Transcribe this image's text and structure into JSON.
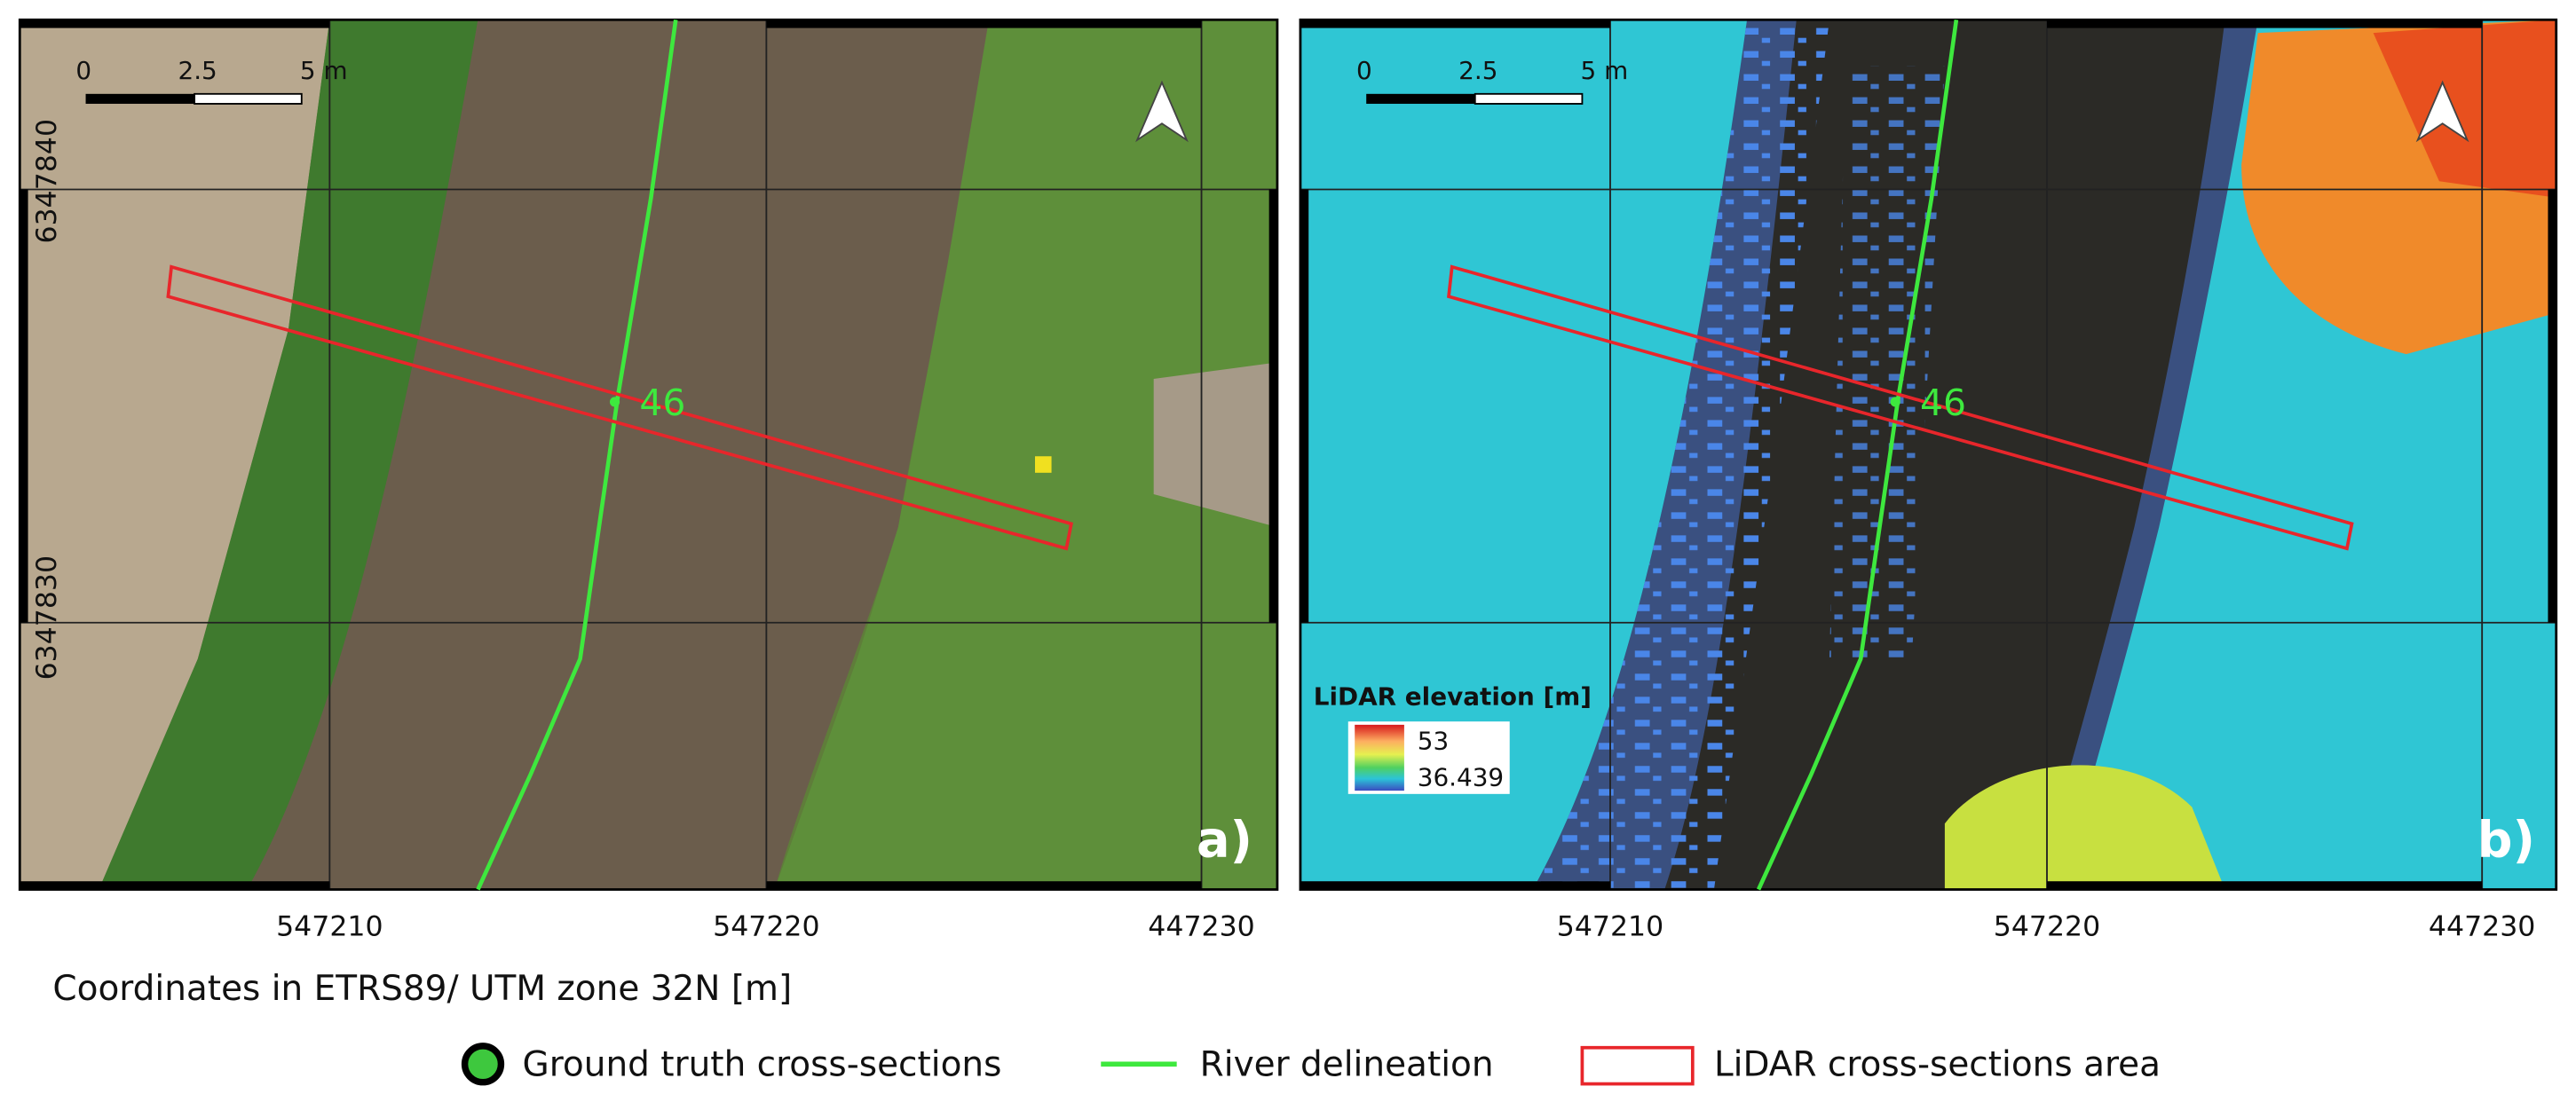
{
  "panels": [
    {
      "label": "a)",
      "scale_labels": [
        "0",
        "2.5",
        "5 m"
      ],
      "y_labels": [
        "6347840",
        "6347830"
      ],
      "x_labels": [
        "547210",
        "547220",
        "447230"
      ],
      "section_id": "46"
    },
    {
      "label": "b)",
      "scale_labels": [
        "0",
        "2.5",
        "5 m"
      ],
      "x_labels": [
        "547210",
        "547220",
        "447230"
      ],
      "section_id": "46",
      "colorbar": {
        "title": "LiDAR elevation [m]",
        "max": "53",
        "min": "36.439"
      }
    }
  ],
  "coordinates_note": "Coordinates in ETRS89/ UTM zone 32N [m]",
  "legend": [
    "Ground truth cross-sections",
    "River delineation",
    "LiDAR cross-sections area"
  ]
}
